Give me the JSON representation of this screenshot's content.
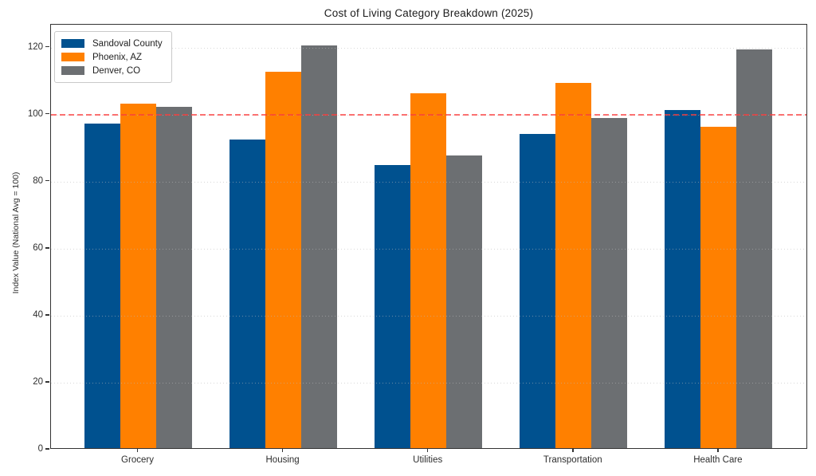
{
  "chart_data": {
    "type": "bar",
    "title": "Cost of Living Category Breakdown (2025)",
    "ylabel": "Index Value (National Avg = 100)",
    "xlabel": "",
    "categories": [
      "Grocery",
      "Housing",
      "Utilities",
      "Transportation",
      "Health Care"
    ],
    "series": [
      {
        "name": "Sandoval County",
        "color": "#00518f",
        "values": [
          96.8,
          92.1,
          84.5,
          93.7,
          100.8
        ]
      },
      {
        "name": "Phoenix, AZ",
        "color": "#ff8000",
        "values": [
          102.8,
          112.4,
          105.8,
          108.9,
          95.8
        ]
      },
      {
        "name": "Denver, CO",
        "color": "#6c6f72",
        "values": [
          101.9,
          120.1,
          87.2,
          98.5,
          118.9
        ]
      }
    ],
    "yticks": [
      0,
      20,
      40,
      60,
      80,
      100,
      120
    ],
    "ylim": [
      0,
      126.8
    ],
    "reference_line": {
      "value": 100,
      "color": "#fa3c3c",
      "style": "dashed"
    },
    "grid": "horizontal-dotted",
    "legend_position": "upper-left"
  }
}
